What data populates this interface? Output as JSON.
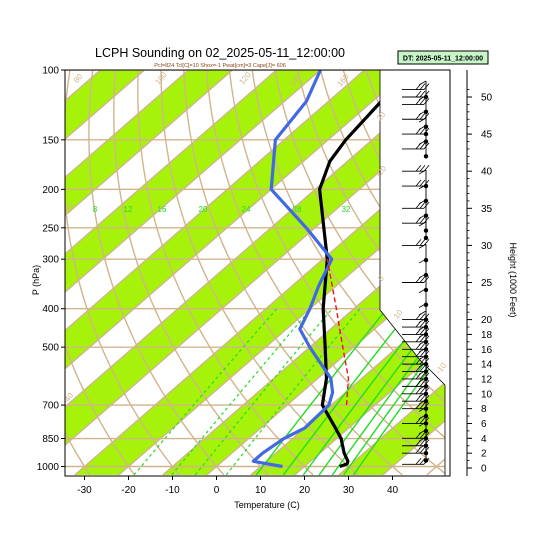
{
  "chart_data": {
    "type": "skew-t",
    "title": "LCPH Sounding on 02_2025-05-11_12:00:00",
    "subtitle": "Pcl=824 Tcl[C]=10 Shox=-1 Pwat[cm]=3 Cape[J]= 606",
    "dt_label": "DT: 2025-05-11_12:00:00",
    "xlabel": "Temperature (C)",
    "ylabel": "P (hPa)",
    "y2label": "Height (1000 Feet)",
    "xlim": [
      -33,
      47
    ],
    "ylim": [
      1020,
      100
    ],
    "x_ticks": [
      -30,
      -20,
      -10,
      0,
      10,
      20,
      30,
      40
    ],
    "p_ticks": [
      100,
      150,
      200,
      250,
      300,
      400,
      500,
      700,
      850,
      1000
    ],
    "height_ticks_kft": [
      0,
      2,
      4,
      6,
      8,
      10,
      12,
      14,
      16,
      18,
      20,
      25,
      30,
      35,
      40,
      45,
      50
    ],
    "mixing_ratio_labels": [
      "8",
      "12",
      "16",
      "20",
      "24",
      "28",
      "32"
    ],
    "dry_adiabat_labels": [
      "80",
      "100",
      "120",
      "140",
      "160",
      "20",
      "-20",
      "0",
      "10",
      "-10",
      "-30",
      "-40"
    ],
    "colors": {
      "isotherm_band": "#a6f20a",
      "dry_adiabat": "#d2b48c",
      "mixing_ratio": "#22dd22",
      "temperature": "#000000",
      "dewpoint": "#4169e1",
      "parcel": "#ee1111",
      "dt_box_fill": "#c8f5c8",
      "dt_box_border": "#000000"
    },
    "series": [
      {
        "key": "temperature",
        "points": [
          [
            1000,
            28
          ],
          [
            985,
            29
          ],
          [
            970,
            28.5
          ],
          [
            925,
            25.5
          ],
          [
            850,
            21
          ],
          [
            800,
            17
          ],
          [
            700,
            8
          ],
          [
            600,
            2
          ],
          [
            500,
            -6.5
          ],
          [
            400,
            -17
          ],
          [
            300,
            -29
          ],
          [
            250,
            -38
          ],
          [
            200,
            -49
          ],
          [
            170,
            -54
          ],
          [
            150,
            -56
          ],
          [
            120,
            -58
          ],
          [
            100,
            -58.5
          ]
        ]
      },
      {
        "key": "dewpoint",
        "points": [
          [
            1000,
            15
          ],
          [
            985,
            11
          ],
          [
            970,
            7
          ],
          [
            925,
            7
          ],
          [
            850,
            8
          ],
          [
            800,
            10
          ],
          [
            700,
            9.5
          ],
          [
            650,
            7
          ],
          [
            600,
            3
          ],
          [
            500,
            -10
          ],
          [
            450,
            -17
          ],
          [
            400,
            -20
          ],
          [
            350,
            -24
          ],
          [
            300,
            -28
          ],
          [
            250,
            -42
          ],
          [
            200,
            -60
          ],
          [
            150,
            -72
          ],
          [
            120,
            -75
          ],
          [
            100,
            -80
          ]
        ]
      },
      {
        "key": "parcel",
        "points": [
          [
            700,
            13.5
          ],
          [
            600,
            7
          ],
          [
            500,
            -2.5
          ],
          [
            400,
            -14
          ],
          [
            300,
            -29
          ]
        ]
      }
    ],
    "wind_barbs_left_kft": [
      0.5,
      2,
      3,
      4,
      6,
      8,
      9,
      10,
      11,
      12,
      13,
      14,
      15,
      16,
      17,
      18,
      19,
      20,
      25,
      30,
      33,
      35,
      38,
      40,
      43,
      45,
      47,
      49,
      50,
      51
    ],
    "wind_barbs_right_kft": [
      1,
      2,
      3,
      4,
      5,
      6,
      7,
      8,
      9,
      10,
      11,
      12,
      13,
      14,
      15,
      16,
      17,
      18,
      19,
      20,
      22,
      24,
      26,
      28,
      31,
      32,
      34,
      36,
      38,
      42,
      44,
      45,
      46,
      48,
      50
    ]
  }
}
